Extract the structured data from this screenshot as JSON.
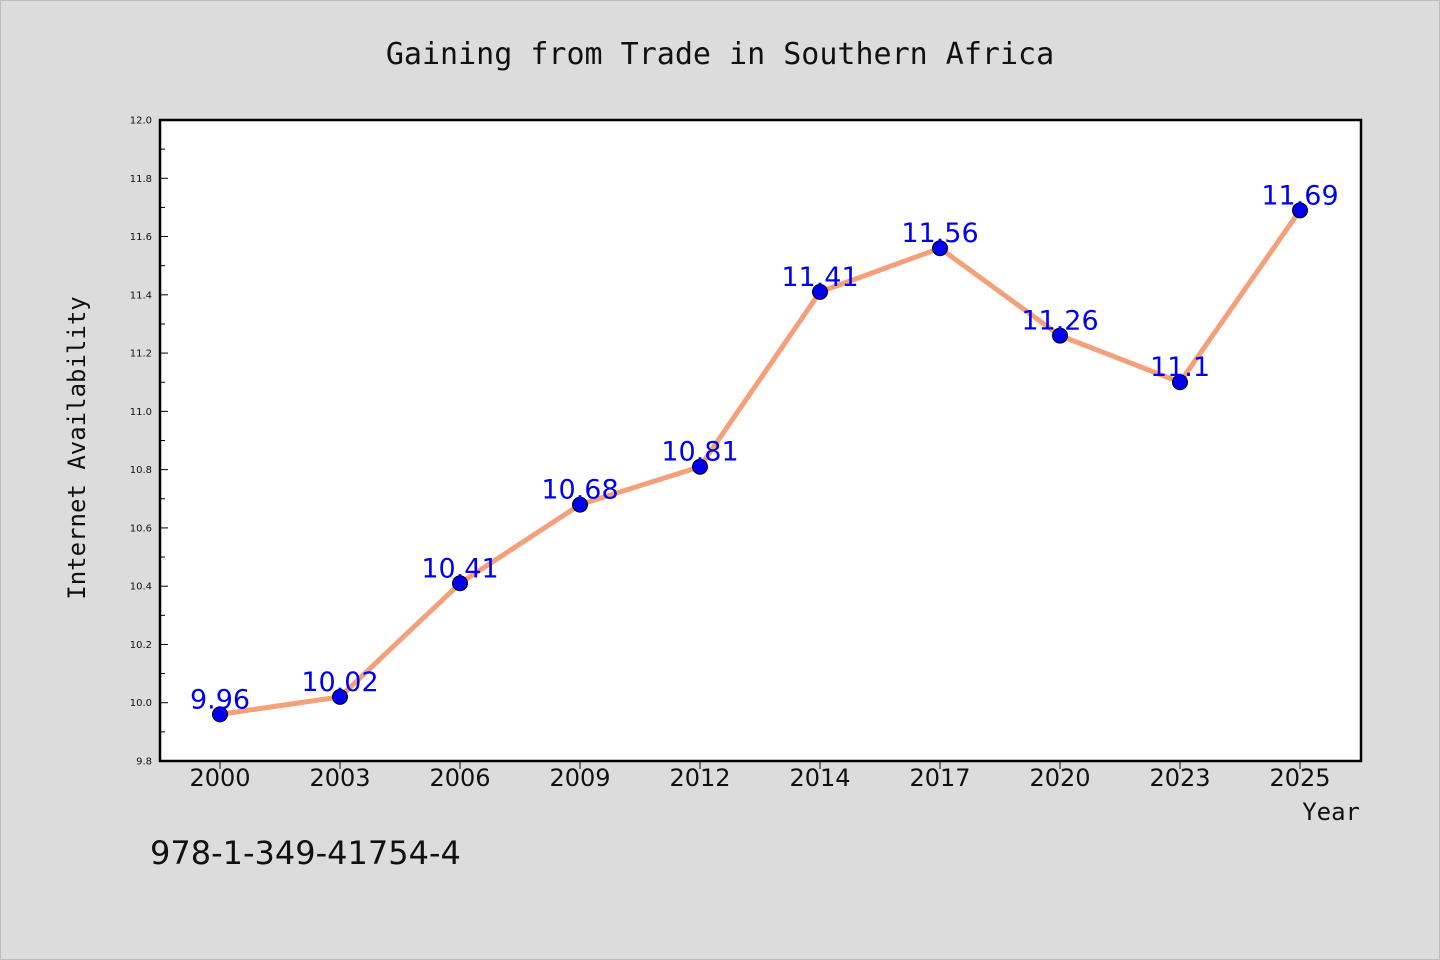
{
  "chart_data": {
    "type": "line",
    "title": "Gaining from Trade in Southern Africa",
    "xlabel": "Year",
    "ylabel": "Internet Availability",
    "categories": [
      "2000",
      "2003",
      "2006",
      "2009",
      "2012",
      "2014",
      "2017",
      "2020",
      "2023",
      "2025"
    ],
    "series": [
      {
        "values": [
          9.96,
          10.02,
          10.41,
          10.68,
          10.81,
          11.41,
          11.56,
          11.26,
          11.1,
          11.69
        ],
        "data_labels": [
          "9.96",
          "10.02",
          "10.41",
          "10.68",
          "10.81",
          "11.41",
          "11.56",
          "11.26",
          "11.1",
          "11.69"
        ],
        "line_color": "#f4a07a",
        "marker_color": "#0000ee"
      }
    ],
    "ylim": [
      9.8,
      12.0
    ],
    "yticks": [
      "9.8",
      "10.0",
      "10.2",
      "10.4",
      "10.6",
      "10.8",
      "11.0",
      "11.2",
      "11.4",
      "11.6",
      "11.8",
      "12.0"
    ],
    "grid": false,
    "legend": "none"
  },
  "footnote": "978-1-349-41754-4",
  "colors": {
    "background": "#dcdcdc",
    "plot_background": "#ffffff",
    "axis": "#000000"
  }
}
